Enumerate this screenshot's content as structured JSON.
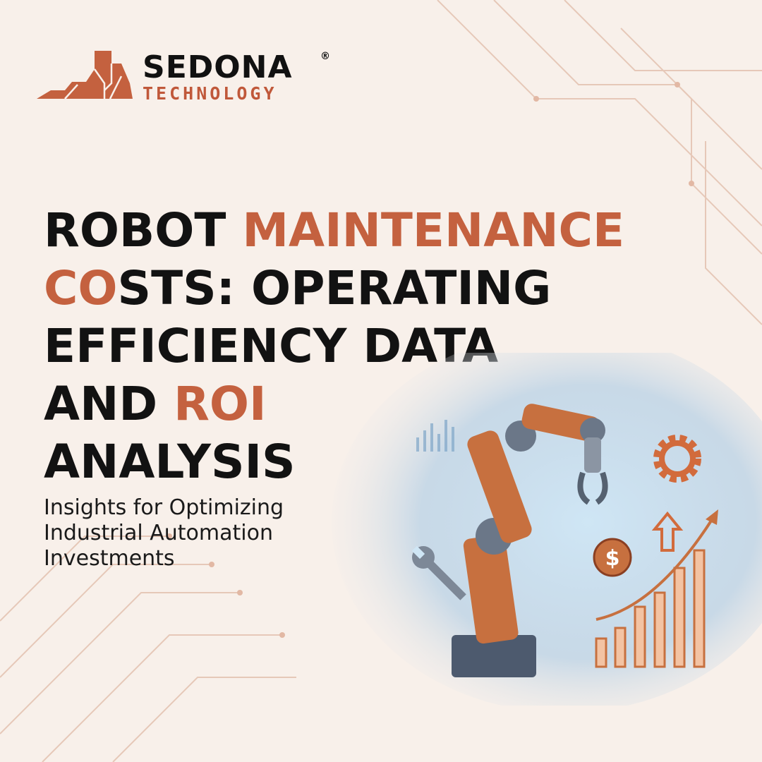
{
  "logo": {
    "word": "SEDONA",
    "registered": "®",
    "sub": "TECHNOLOGY"
  },
  "title": {
    "line1": {
      "a": "ROBOT ",
      "b": "MAINTENANCE"
    },
    "line2": {
      "a": "CO",
      "b": "STS: OPERATING"
    },
    "line3": "EFFICIENCY DATA",
    "line4": {
      "a": "AND ",
      "b": "ROI"
    },
    "line5": "ANALYSIS"
  },
  "subtitle": [
    "Insights for Optimizing",
    "Industrial Automation",
    "Investments"
  ],
  "colors": {
    "accent": "#c4613f",
    "text": "#121212",
    "background": "#f8f0ea"
  },
  "illustration": {
    "icons": [
      "robot-arm-icon",
      "gear-icon",
      "wrench-icon",
      "dollar-coin-icon",
      "up-arrow-icon",
      "growth-bar-chart-icon"
    ],
    "currency_symbol": "$"
  }
}
